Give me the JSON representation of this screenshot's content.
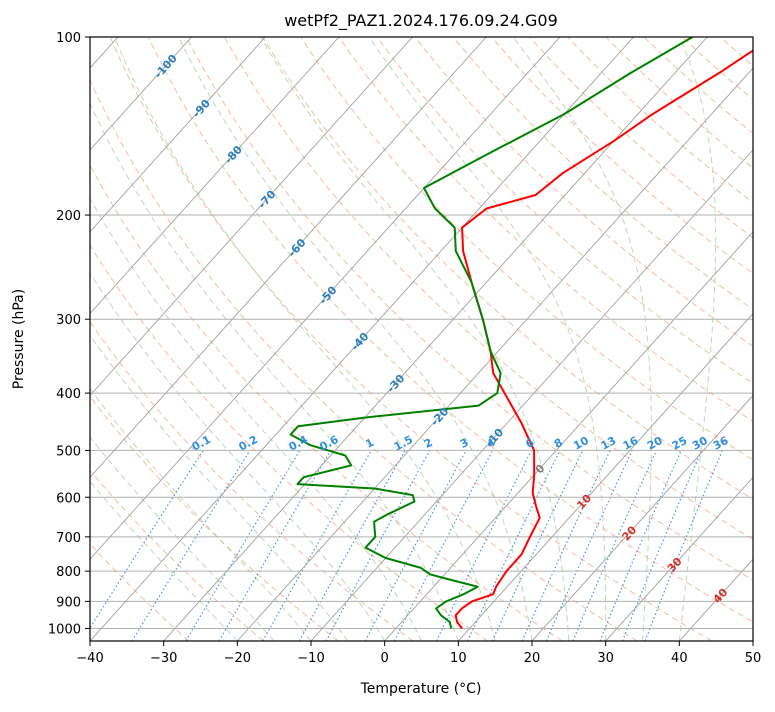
{
  "chart_data": {
    "type": "line",
    "subtype": "skew-t log-p diagram",
    "title": "wetPf2_PAZ1.2024.176.09.24.G09",
    "xlabel": "Temperature (°C)",
    "ylabel": "Pressure (hPa)",
    "xlim": [
      -40,
      50
    ],
    "ylim": [
      1050,
      100
    ],
    "y_scale": "log",
    "grid": true,
    "x_ticks": [
      -40,
      -30,
      -20,
      -10,
      0,
      10,
      20,
      30,
      40,
      50
    ],
    "x_tick_labels": [
      "−40",
      "−30",
      "−20",
      "−10",
      "0",
      "10",
      "20",
      "30",
      "40",
      "50"
    ],
    "y_ticks": [
      1000,
      900,
      800,
      700,
      600,
      500,
      400,
      300,
      200,
      100
    ],
    "y_tick_labels": [
      "1000",
      "900",
      "800",
      "700",
      "600",
      "500",
      "400",
      "300",
      "200",
      "100"
    ],
    "series": [
      {
        "role": "temperature",
        "color": "#ff0000",
        "points": [
          {
            "p": 1000,
            "t": 9.0
          },
          {
            "p": 975,
            "t": 7.5
          },
          {
            "p": 950,
            "t": 6.5
          },
          {
            "p": 925,
            "t": 6.5
          },
          {
            "p": 900,
            "t": 7.0
          },
          {
            "p": 875,
            "t": 9.0
          },
          {
            "p": 850,
            "t": 8.5
          },
          {
            "p": 800,
            "t": 8.0
          },
          {
            "p": 750,
            "t": 8.0
          },
          {
            "p": 700,
            "t": 7.0
          },
          {
            "p": 650,
            "t": 6.0
          },
          {
            "p": 620,
            "t": 4.0
          },
          {
            "p": 590,
            "t": 2.0
          },
          {
            "p": 550,
            "t": 0.0
          },
          {
            "p": 500,
            "t": -3.0
          },
          {
            "p": 450,
            "t": -8.0
          },
          {
            "p": 400,
            "t": -14.0
          },
          {
            "p": 370,
            "t": -18.0
          },
          {
            "p": 340,
            "t": -21.0
          },
          {
            "p": 300,
            "t": -26.0
          },
          {
            "p": 260,
            "t": -32.0
          },
          {
            "p": 230,
            "t": -37.0
          },
          {
            "p": 210,
            "t": -40.0
          },
          {
            "p": 195,
            "t": -39.0
          },
          {
            "p": 185,
            "t": -34.0
          },
          {
            "p": 170,
            "t": -33.0
          },
          {
            "p": 150,
            "t": -30.0
          },
          {
            "p": 135,
            "t": -28.0
          },
          {
            "p": 115,
            "t": -24.0
          },
          {
            "p": 100,
            "t": -21.0
          }
        ]
      },
      {
        "role": "dewpoint",
        "color": "#008000",
        "points": [
          {
            "p": 1000,
            "t": 7.5
          },
          {
            "p": 975,
            "t": 6.5
          },
          {
            "p": 950,
            "t": 4.5
          },
          {
            "p": 925,
            "t": 3.0
          },
          {
            "p": 900,
            "t": 3.5
          },
          {
            "p": 875,
            "t": 5.0
          },
          {
            "p": 850,
            "t": 6.0
          },
          {
            "p": 830,
            "t": 2.0
          },
          {
            "p": 810,
            "t": -2.0
          },
          {
            "p": 790,
            "t": -4.0
          },
          {
            "p": 760,
            "t": -10.0
          },
          {
            "p": 730,
            "t": -14.0
          },
          {
            "p": 700,
            "t": -14.0
          },
          {
            "p": 680,
            "t": -15.0
          },
          {
            "p": 660,
            "t": -16.0
          },
          {
            "p": 640,
            "t": -15.0
          },
          {
            "p": 610,
            "t": -13.0
          },
          {
            "p": 595,
            "t": -14.0
          },
          {
            "p": 580,
            "t": -20.0
          },
          {
            "p": 570,
            "t": -31.0
          },
          {
            "p": 555,
            "t": -31.0
          },
          {
            "p": 530,
            "t": -26.0
          },
          {
            "p": 510,
            "t": -28.0
          },
          {
            "p": 490,
            "t": -34.0
          },
          {
            "p": 470,
            "t": -38.0
          },
          {
            "p": 455,
            "t": -38.0
          },
          {
            "p": 440,
            "t": -30.0
          },
          {
            "p": 420,
            "t": -16.0
          },
          {
            "p": 400,
            "t": -15.0
          },
          {
            "p": 370,
            "t": -17.0
          },
          {
            "p": 340,
            "t": -21.0
          },
          {
            "p": 300,
            "t": -26.0
          },
          {
            "p": 260,
            "t": -32.0
          },
          {
            "p": 230,
            "t": -38.0
          },
          {
            "p": 210,
            "t": -41.0
          },
          {
            "p": 195,
            "t": -46.0
          },
          {
            "p": 180,
            "t": -50.0
          },
          {
            "p": 160,
            "t": -46.0
          },
          {
            "p": 135,
            "t": -40.0
          },
          {
            "p": 115,
            "t": -36.0
          },
          {
            "p": 100,
            "t": -32.0
          }
        ]
      }
    ],
    "reference_lines": {
      "isotherms": {
        "color": "#a0a0a0",
        "step_c": 10
      },
      "dry_adiabats": {
        "color": "#f4a582",
        "style": "dashed"
      },
      "moist_adiabats": {
        "color": "#a6d3a0",
        "style": "dashed"
      },
      "mixing_ratio": {
        "color": "#3a8fd6",
        "style": "dotted"
      }
    },
    "isotherm_labels": [
      {
        "t": -100,
        "p": 112
      },
      {
        "t": -90,
        "p": 132
      },
      {
        "t": -80,
        "p": 158
      },
      {
        "t": -70,
        "p": 188
      },
      {
        "t": -60,
        "p": 227
      },
      {
        "t": -50,
        "p": 273
      },
      {
        "t": -40,
        "p": 327
      },
      {
        "t": -30,
        "p": 385
      },
      {
        "t": -20,
        "p": 438
      },
      {
        "t": -10,
        "p": 475
      },
      {
        "t": 0,
        "p": 537
      },
      {
        "t": 10,
        "p": 610
      },
      {
        "t": 20,
        "p": 690
      },
      {
        "t": 30,
        "p": 780
      },
      {
        "t": 40,
        "p": 880
      }
    ],
    "mixing_ratio_labels": [
      "0.1",
      "0.2",
      "0.4",
      "0.6",
      "1",
      "1.5",
      "2",
      "3",
      "4",
      "6",
      "8",
      "10",
      "13",
      "16",
      "20",
      "25",
      "30",
      "36"
    ]
  }
}
